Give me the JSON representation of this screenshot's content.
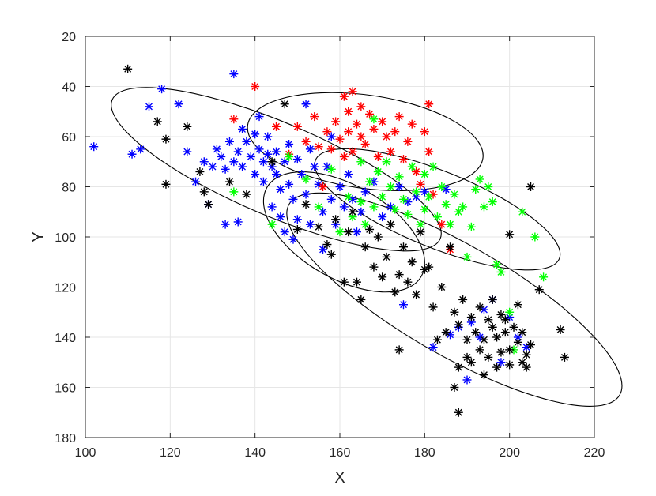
{
  "chart_data": {
    "type": "scatter",
    "title": "",
    "xlabel": "X",
    "ylabel": "Y",
    "xlim": [
      100,
      220
    ],
    "ylim": [
      20,
      180
    ],
    "y_axis_reversed": true,
    "grid": true,
    "marker": "asterisk",
    "x_ticks": [
      100,
      120,
      140,
      160,
      180,
      200,
      220
    ],
    "y_ticks": [
      20,
      40,
      60,
      80,
      100,
      120,
      140,
      160,
      180
    ],
    "series": [
      {
        "color": "#0000ff",
        "points": [
          [
            102,
            64
          ],
          [
            111,
            67
          ],
          [
            113,
            65
          ],
          [
            115,
            48
          ],
          [
            118,
            41
          ],
          [
            122,
            47
          ],
          [
            124,
            66
          ],
          [
            126,
            78
          ],
          [
            128,
            70
          ],
          [
            129,
            87
          ],
          [
            130,
            72
          ],
          [
            131,
            65
          ],
          [
            132,
            68
          ],
          [
            133,
            73
          ],
          [
            133,
            95
          ],
          [
            134,
            62
          ],
          [
            135,
            35
          ],
          [
            135,
            70
          ],
          [
            136,
            94
          ],
          [
            136,
            66
          ],
          [
            137,
            57
          ],
          [
            137,
            72
          ],
          [
            138,
            62
          ],
          [
            139,
            68
          ],
          [
            140,
            59
          ],
          [
            140,
            75
          ],
          [
            141,
            65
          ],
          [
            141,
            52
          ],
          [
            142,
            70
          ],
          [
            142,
            78
          ],
          [
            143,
            60
          ],
          [
            143,
            67
          ],
          [
            144,
            72
          ],
          [
            144,
            88
          ],
          [
            145,
            75
          ],
          [
            145,
            66
          ],
          [
            146,
            81
          ],
          [
            146,
            92
          ],
          [
            147,
            70
          ],
          [
            147,
            98
          ],
          [
            148,
            63
          ],
          [
            148,
            79
          ],
          [
            149,
            85
          ],
          [
            149,
            101
          ],
          [
            150,
            69
          ],
          [
            150,
            93
          ],
          [
            151,
            75
          ],
          [
            152,
            47
          ],
          [
            152,
            83
          ],
          [
            153,
            65
          ],
          [
            153,
            95
          ],
          [
            154,
            72
          ],
          [
            155,
            79
          ],
          [
            156,
            90
          ],
          [
            156,
            105
          ],
          [
            157,
            72
          ],
          [
            158,
            85
          ],
          [
            158,
            60
          ],
          [
            159,
            95
          ],
          [
            160,
            80
          ],
          [
            161,
            88
          ],
          [
            162,
            75
          ],
          [
            163,
            85
          ],
          [
            164,
            98
          ],
          [
            165,
            90
          ],
          [
            166,
            82
          ],
          [
            168,
            78
          ],
          [
            170,
            92
          ],
          [
            172,
            88
          ],
          [
            174,
            80
          ],
          [
            175,
            127
          ],
          [
            176,
            86
          ],
          [
            178,
            84
          ],
          [
            180,
            82
          ],
          [
            182,
            144
          ],
          [
            185,
            81
          ],
          [
            186,
            139
          ],
          [
            188,
            136
          ],
          [
            190,
            157
          ],
          [
            191,
            134
          ],
          [
            193,
            140
          ],
          [
            194,
            129
          ],
          [
            196,
            125
          ],
          [
            198,
            150
          ],
          [
            200,
            132
          ],
          [
            202,
            140
          ],
          [
            204,
            144
          ]
        ]
      },
      {
        "color": "#ff0000",
        "points": [
          [
            135,
            53
          ],
          [
            140,
            40
          ],
          [
            145,
            56
          ],
          [
            148,
            67
          ],
          [
            150,
            56
          ],
          [
            152,
            62
          ],
          [
            154,
            52
          ],
          [
            155,
            64
          ],
          [
            156,
            80
          ],
          [
            157,
            58
          ],
          [
            158,
            65
          ],
          [
            159,
            54
          ],
          [
            160,
            61
          ],
          [
            161,
            44
          ],
          [
            161,
            68
          ],
          [
            162,
            50
          ],
          [
            162,
            58
          ],
          [
            163,
            42
          ],
          [
            163,
            66
          ],
          [
            164,
            55
          ],
          [
            165,
            60
          ],
          [
            165,
            48
          ],
          [
            166,
            63
          ],
          [
            167,
            51
          ],
          [
            168,
            57
          ],
          [
            169,
            68
          ],
          [
            170,
            54
          ],
          [
            171,
            60
          ],
          [
            172,
            66
          ],
          [
            173,
            58
          ],
          [
            174,
            52
          ],
          [
            175,
            69
          ],
          [
            176,
            62
          ],
          [
            177,
            55
          ],
          [
            178,
            74
          ],
          [
            179,
            79
          ],
          [
            180,
            58
          ],
          [
            181,
            66
          ],
          [
            181,
            47
          ],
          [
            182,
            83
          ],
          [
            184,
            95
          ],
          [
            186,
            105
          ]
        ]
      },
      {
        "color": "#00ff00",
        "points": [
          [
            135,
            82
          ],
          [
            144,
            95
          ],
          [
            148,
            68
          ],
          [
            152,
            77
          ],
          [
            155,
            88
          ],
          [
            158,
            73
          ],
          [
            160,
            98
          ],
          [
            162,
            84
          ],
          [
            163,
            92
          ],
          [
            165,
            70
          ],
          [
            165,
            86
          ],
          [
            166,
            95
          ],
          [
            167,
            78
          ],
          [
            168,
            53
          ],
          [
            168,
            88
          ],
          [
            169,
            74
          ],
          [
            170,
            84
          ],
          [
            171,
            70
          ],
          [
            172,
            80
          ],
          [
            173,
            89
          ],
          [
            174,
            76
          ],
          [
            175,
            85
          ],
          [
            176,
            91
          ],
          [
            177,
            72
          ],
          [
            178,
            82
          ],
          [
            179,
            95
          ],
          [
            180,
            75
          ],
          [
            180,
            89
          ],
          [
            181,
            84
          ],
          [
            182,
            72
          ],
          [
            183,
            92
          ],
          [
            184,
            80
          ],
          [
            185,
            87
          ],
          [
            186,
            95
          ],
          [
            187,
            83
          ],
          [
            188,
            90
          ],
          [
            189,
            88
          ],
          [
            190,
            108
          ],
          [
            191,
            96
          ],
          [
            192,
            81
          ],
          [
            193,
            77
          ],
          [
            194,
            88
          ],
          [
            195,
            80
          ],
          [
            196,
            86
          ],
          [
            197,
            111
          ],
          [
            198,
            114
          ],
          [
            200,
            130
          ],
          [
            201,
            145
          ],
          [
            203,
            90
          ],
          [
            206,
            100
          ],
          [
            208,
            116
          ]
        ]
      },
      {
        "color": "#000000",
        "points": [
          [
            110,
            33
          ],
          [
            117,
            54
          ],
          [
            119,
            61
          ],
          [
            119,
            79
          ],
          [
            124,
            56
          ],
          [
            127,
            74
          ],
          [
            128,
            82
          ],
          [
            129,
            87
          ],
          [
            134,
            78
          ],
          [
            138,
            83
          ],
          [
            144,
            70
          ],
          [
            147,
            47
          ],
          [
            150,
            97
          ],
          [
            152,
            87
          ],
          [
            155,
            96
          ],
          [
            157,
            103
          ],
          [
            158,
            107
          ],
          [
            159,
            93
          ],
          [
            161,
            118
          ],
          [
            162,
            98
          ],
          [
            163,
            90
          ],
          [
            164,
            118
          ],
          [
            165,
            125
          ],
          [
            166,
            104
          ],
          [
            167,
            97
          ],
          [
            168,
            112
          ],
          [
            169,
            100
          ],
          [
            170,
            116
          ],
          [
            171,
            108
          ],
          [
            172,
            95
          ],
          [
            173,
            122
          ],
          [
            174,
            115
          ],
          [
            174,
            145
          ],
          [
            175,
            104
          ],
          [
            176,
            118
          ],
          [
            177,
            110
          ],
          [
            178,
            123
          ],
          [
            179,
            98
          ],
          [
            180,
            113
          ],
          [
            181,
            112
          ],
          [
            182,
            128
          ],
          [
            183,
            141
          ],
          [
            184,
            120
          ],
          [
            185,
            138
          ],
          [
            186,
            104
          ],
          [
            187,
            160
          ],
          [
            187,
            130
          ],
          [
            188,
            135
          ],
          [
            188,
            152
          ],
          [
            188,
            170
          ],
          [
            189,
            125
          ],
          [
            190,
            141
          ],
          [
            190,
            148
          ],
          [
            191,
            150
          ],
          [
            191,
            132
          ],
          [
            192,
            138
          ],
          [
            193,
            145
          ],
          [
            193,
            128
          ],
          [
            194,
            141
          ],
          [
            194,
            155
          ],
          [
            195,
            133
          ],
          [
            195,
            148
          ],
          [
            196,
            136
          ],
          [
            196,
            125
          ],
          [
            197,
            140
          ],
          [
            197,
            152
          ],
          [
            198,
            131
          ],
          [
            198,
            146
          ],
          [
            199,
            138
          ],
          [
            199,
            133
          ],
          [
            200,
            145
          ],
          [
            200,
            99
          ],
          [
            200,
            151
          ],
          [
            201,
            136
          ],
          [
            202,
            142
          ],
          [
            202,
            127
          ],
          [
            203,
            150
          ],
          [
            203,
            138
          ],
          [
            204,
            147
          ],
          [
            204,
            152
          ],
          [
            205,
            143
          ],
          [
            205,
            80
          ],
          [
            207,
            121
          ],
          [
            212,
            137
          ],
          [
            213,
            148
          ]
        ]
      }
    ],
    "ellipses": [
      {
        "cx": 145,
        "cy": 73,
        "rx": 42,
        "ry": 11,
        "angle_deg": 23
      },
      {
        "cx": 166,
        "cy": 62,
        "rx": 28,
        "ry": 11,
        "angle_deg": 8
      },
      {
        "cx": 183,
        "cy": 89,
        "rx": 31,
        "ry": 9,
        "angle_deg": 22
      },
      {
        "cx": 187,
        "cy": 125,
        "rx": 45,
        "ry": 13,
        "angle_deg": 30
      },
      {
        "cx": 161,
        "cy": 98,
        "rx": 21,
        "ry": 11,
        "angle_deg": 30
      }
    ]
  }
}
